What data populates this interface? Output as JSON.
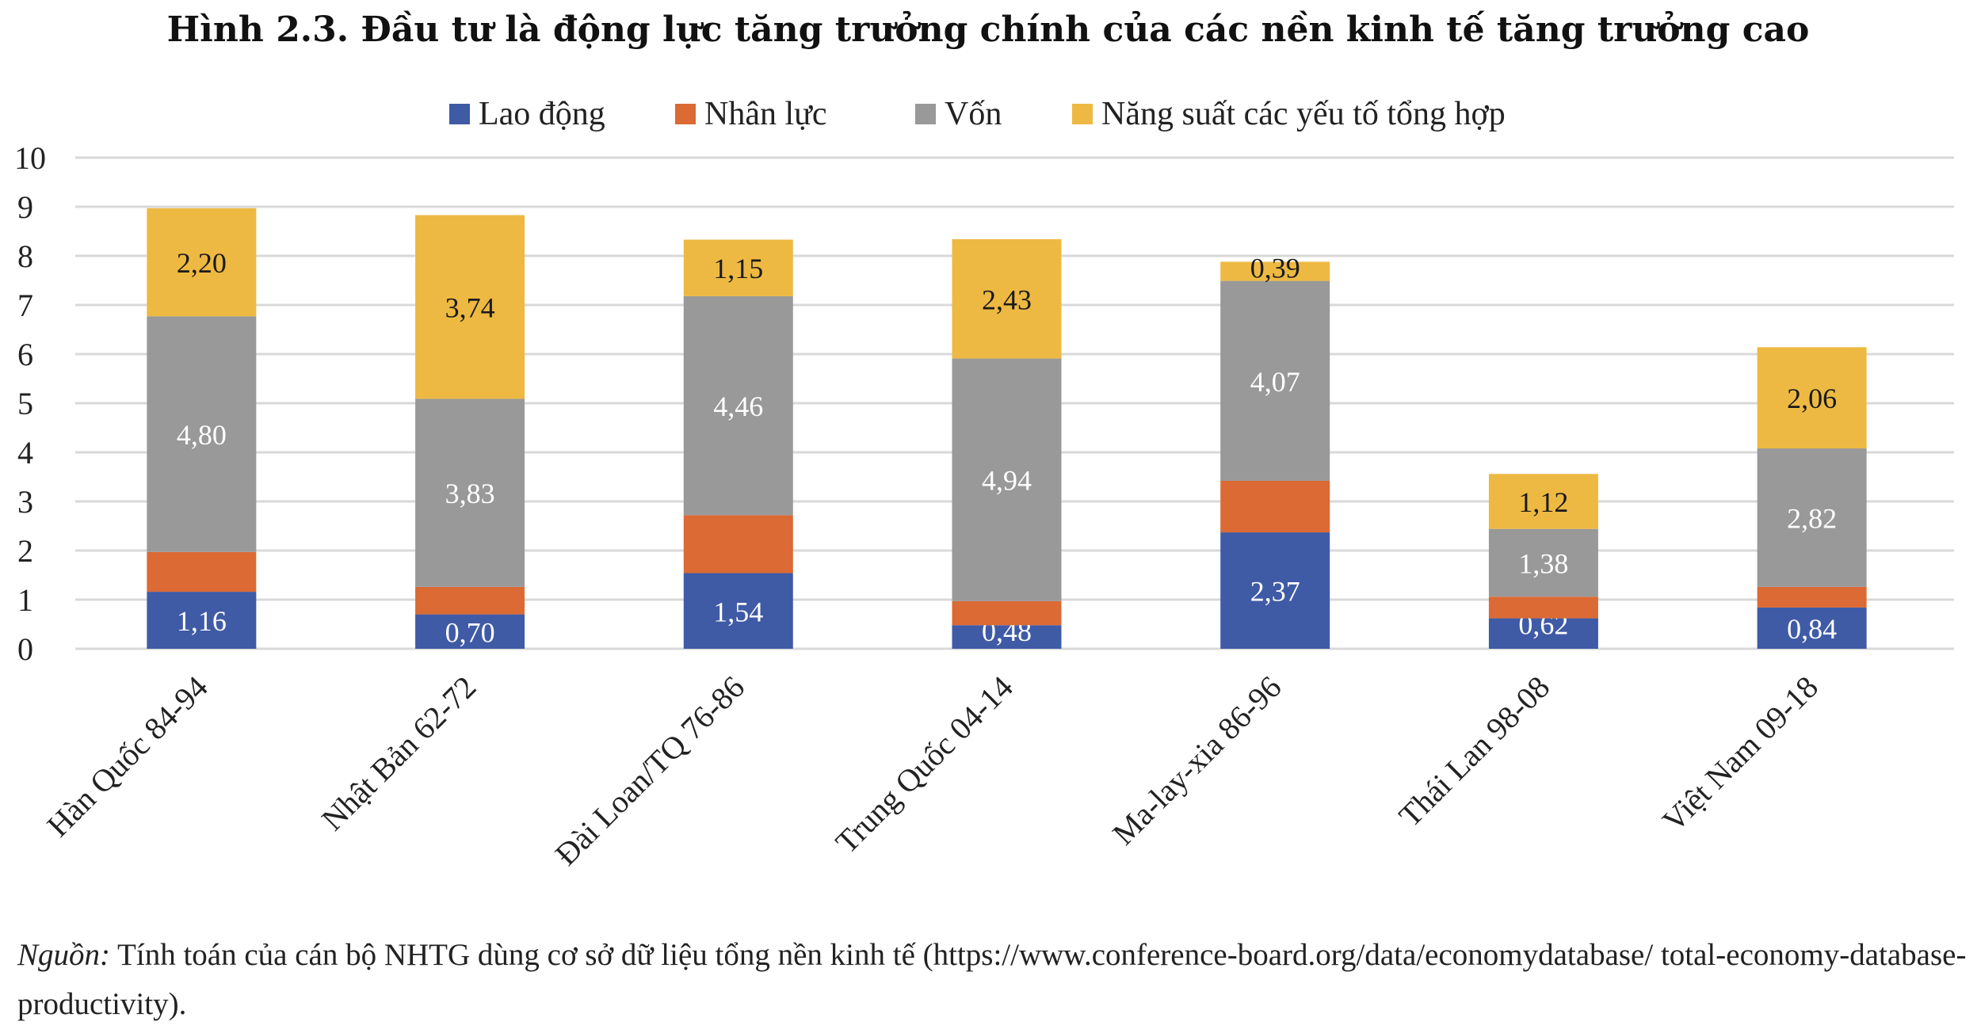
{
  "chart_data": {
    "type": "bar",
    "stacked": true,
    "title": "Hình 2.3. Đầu tư là động lực tăng trưởng chính của các nền kinh tế tăng trưởng cao",
    "xlabel": "",
    "ylabel": "",
    "ylim": [
      0,
      10
    ],
    "yticks": [
      0,
      1,
      2,
      3,
      4,
      5,
      6,
      7,
      8,
      9,
      10
    ],
    "grid": true,
    "legend_position": "top",
    "categories": [
      "Hàn Quốc 84-94",
      "Nhật Bản 62-72",
      "Đài Loan/TQ 76-86",
      "Trung Quốc 04-14",
      "Ma-lay-xia 86-96",
      "Thái Lan 98-08",
      "Việt Nam 09-18"
    ],
    "series": [
      {
        "name": "Lao động",
        "color": "#3F5BA6",
        "label_color": "#ffffff",
        "labeled": true,
        "values": [
          1.16,
          0.7,
          1.54,
          0.48,
          2.37,
          0.62,
          0.84
        ]
      },
      {
        "name": "Nhân lực",
        "color": "#DB6A34",
        "label_color": "#ffffff",
        "labeled": false,
        "values": [
          0.81,
          0.56,
          1.18,
          0.49,
          1.05,
          0.44,
          0.42
        ]
      },
      {
        "name": "Vốn",
        "color": "#999999",
        "label_color": "#ffffff",
        "labeled": true,
        "values": [
          4.8,
          3.83,
          4.46,
          4.94,
          4.07,
          1.38,
          2.82
        ]
      },
      {
        "name": "Năng suất các yếu tố tổng hợp",
        "color": "#EDB942",
        "label_color": "#1a1a1a",
        "labeled": true,
        "values": [
          2.2,
          3.74,
          1.15,
          2.43,
          0.39,
          1.12,
          2.06
        ]
      }
    ]
  },
  "source": {
    "label": "Nguồn:",
    "text": " Tính toán của cán bộ NHTG dùng cơ sở dữ liệu tổng nền kinh tế (https://www.conference-board.org/data/economydatabase/ total-economy-database-productivity)."
  }
}
